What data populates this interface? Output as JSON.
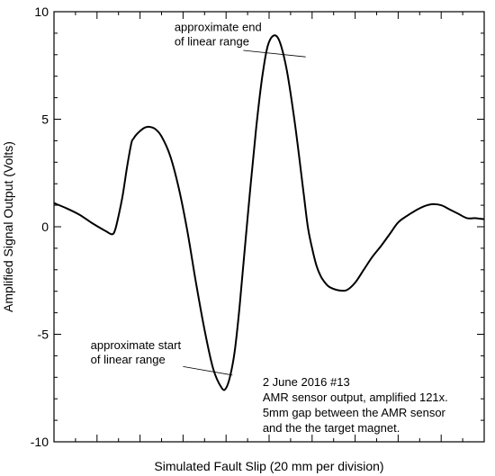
{
  "chart_data": {
    "type": "line",
    "xlabel": "Simulated Fault Slip (20 mm per division)",
    "ylabel": "Amplified Signal Output (Volts)",
    "xlim": [
      0,
      10
    ],
    "ylim": [
      -10,
      10
    ],
    "x_ticks": [
      0,
      1,
      2,
      3,
      4,
      5,
      6,
      7,
      8,
      9,
      10
    ],
    "y_ticks": [
      -10,
      -5,
      0,
      5,
      10
    ],
    "y_tick_labels": [
      "-10",
      "-5",
      "0",
      "5",
      "10"
    ],
    "grid": false,
    "series": [
      {
        "name": "",
        "x": [
          0,
          0.3,
          0.6,
          0.9,
          1.2,
          1.35,
          1.42,
          1.5,
          1.6,
          1.7,
          1.8,
          1.85,
          1.9,
          2.0,
          2.1,
          2.2,
          2.35,
          2.5,
          2.7,
          2.9,
          3.1,
          3.3,
          3.5,
          3.7,
          3.9,
          4.0,
          4.1,
          4.2,
          4.3,
          4.4,
          4.55,
          4.7,
          4.85,
          5.0,
          5.2,
          5.4,
          5.6,
          5.8,
          5.9,
          6.0,
          6.1,
          6.2,
          6.3,
          6.4,
          6.6,
          6.8,
          7.0,
          7.2,
          7.4,
          7.6,
          7.8,
          8.0,
          8.2,
          8.4,
          8.6,
          8.8,
          9.0,
          9.2,
          9.4,
          9.6,
          9.8,
          10.0
        ],
        "y": [
          1.1,
          0.85,
          0.55,
          0.15,
          -0.2,
          -0.35,
          -0.15,
          0.5,
          1.5,
          2.8,
          3.9,
          4.1,
          4.25,
          4.45,
          4.6,
          4.65,
          4.55,
          4.2,
          3.3,
          1.8,
          -0.2,
          -2.6,
          -4.8,
          -6.6,
          -7.5,
          -7.5,
          -6.9,
          -5.8,
          -4.0,
          -1.8,
          1.5,
          4.6,
          7.1,
          8.6,
          8.8,
          7.4,
          4.8,
          1.6,
          0.0,
          -1.0,
          -1.8,
          -2.3,
          -2.6,
          -2.8,
          -2.95,
          -2.95,
          -2.6,
          -2.0,
          -1.4,
          -0.9,
          -0.35,
          0.2,
          0.5,
          0.75,
          0.95,
          1.05,
          1.0,
          0.8,
          0.6,
          0.4,
          0.4,
          0.35
        ]
      }
    ],
    "annotations": [
      {
        "lines": [
          "approximate end",
          "of linear range"
        ],
        "text_x": 2.8,
        "text_y": 9.1,
        "arrow_from": [
          4.4,
          8.2
        ],
        "arrow_to": [
          5.85,
          7.9
        ]
      },
      {
        "lines": [
          "approximate start",
          "of linear range"
        ],
        "text_x": 0.85,
        "text_y": -5.7,
        "arrow_from": [
          3.0,
          -6.5
        ],
        "arrow_to": [
          4.15,
          -6.9
        ]
      }
    ],
    "note": {
      "lines": [
        "2 June 2016 #13",
        "AMR sensor output, amplified 121x.",
        "5mm gap between the AMR sensor",
        "and the the target magnet."
      ],
      "text_x": 4.85,
      "text_y": -7.4
    }
  }
}
